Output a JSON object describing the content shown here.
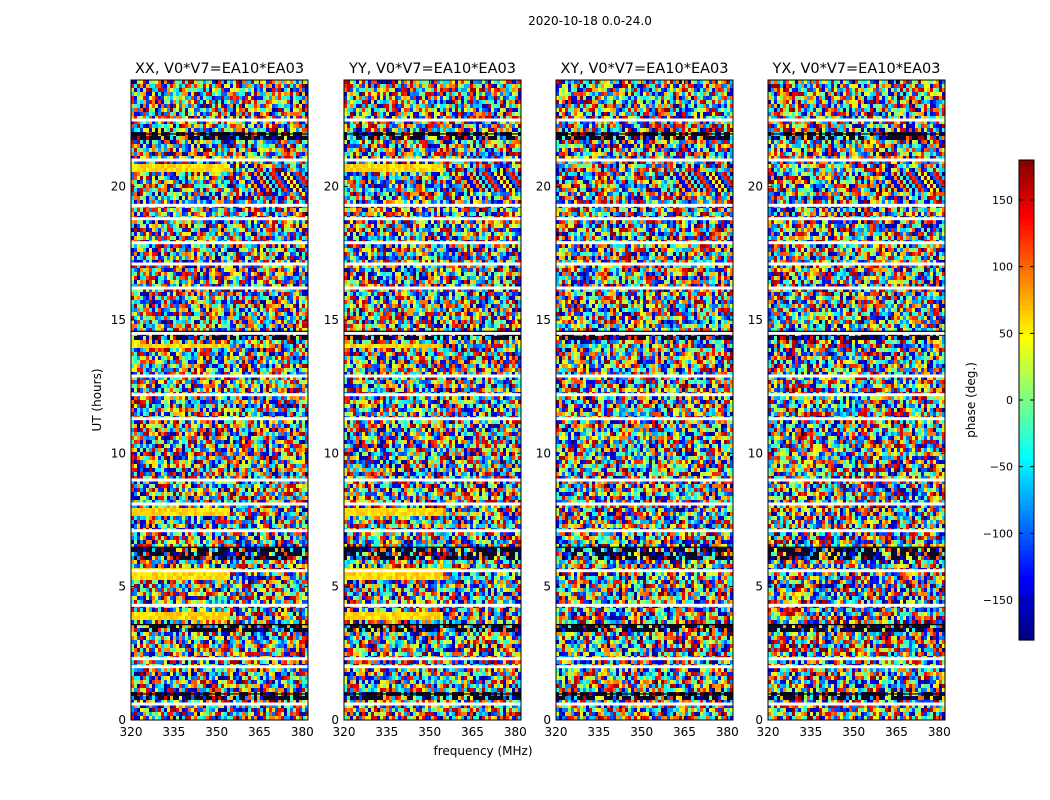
{
  "chart_data": {
    "type": "heatmap",
    "suptitle": "2020-10-18 0.0-24.0",
    "xlabel": "frequency (MHz)",
    "ylabel": "UT (hours)",
    "xlim": [
      320,
      382
    ],
    "ylim": [
      0,
      24
    ],
    "xticks": [
      320,
      335,
      350,
      365,
      380
    ],
    "yticks": [
      0,
      5,
      10,
      15,
      20
    ],
    "panels": [
      {
        "title": "XX, V0*V7=EA10*EA03",
        "yellow_bands": true
      },
      {
        "title": "YY, V0*V7=EA10*EA03",
        "yellow_bands": true
      },
      {
        "title": "XY, V0*V7=EA10*EA03",
        "yellow_bands": false
      },
      {
        "title": "YX, V0*V7=EA10*EA03",
        "yellow_bands": false
      }
    ],
    "colorbar": {
      "label": "phase (deg.)",
      "range": [
        -180,
        180
      ],
      "ticks": [
        -150,
        -100,
        -50,
        0,
        50,
        100,
        150
      ],
      "tick_labels": [
        "−150",
        "−100",
        "−50",
        "0",
        "50",
        "100",
        "150"
      ],
      "colormap": "jet"
    },
    "gap_hours": [
      0.6,
      2.0,
      2.3,
      4.3,
      5.6,
      7.1,
      8.1,
      9.0,
      11.3,
      12.2,
      12.9,
      14.5,
      16.2,
      17.1,
      17.9,
      18.8,
      19.3,
      21.0,
      22.5
    ],
    "dark_band_hours": [
      [
        0.8,
        1.0
      ],
      [
        3.3,
        3.6
      ],
      [
        6.0,
        6.5
      ],
      [
        14.3,
        14.6
      ],
      [
        21.7,
        22.0
      ]
    ],
    "yellow_band_hours": [
      [
        3.8,
        4.1
      ],
      [
        5.3,
        5.7
      ],
      [
        7.6,
        7.9
      ],
      [
        13.9,
        14.1
      ],
      [
        20.6,
        20.9
      ]
    ],
    "fringe_region": {
      "freq": [
        362,
        382
      ],
      "hours": [
        19.8,
        20.6
      ]
    }
  }
}
